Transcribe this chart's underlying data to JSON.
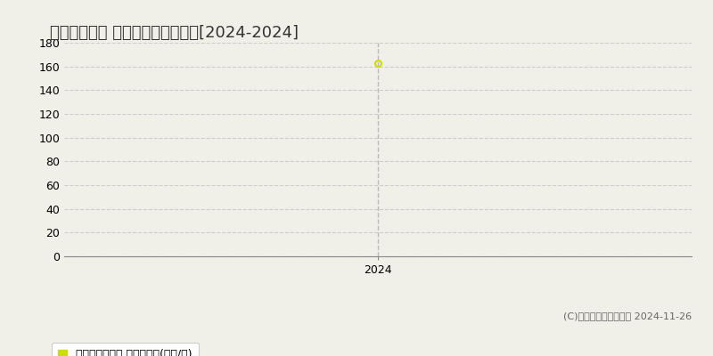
{
  "title": "高知市大川筋 マンション価格推移[2024-2024]",
  "x_data": [
    2024
  ],
  "y_data": [
    163
  ],
  "ylim": [
    0,
    180
  ],
  "yticks": [
    0,
    20,
    40,
    60,
    80,
    100,
    120,
    140,
    160,
    180
  ],
  "xlim": [
    2023.3,
    2024.7
  ],
  "xticks": [
    2024
  ],
  "point_color": "#ccdd00",
  "vline_color": "#bbbbbb",
  "grid_color": "#cccccc",
  "bg_color": "#f0f0e8",
  "plot_bg_color": "#f0f0e8",
  "legend_label": "マンション価格 平均坪単価(万円/坪)",
  "legend_marker_color": "#ccdd00",
  "copyright_text": "(C)土地価格ドットコム 2024-11-26",
  "title_fontsize": 13,
  "tick_fontsize": 9,
  "legend_fontsize": 9,
  "copyright_fontsize": 8
}
